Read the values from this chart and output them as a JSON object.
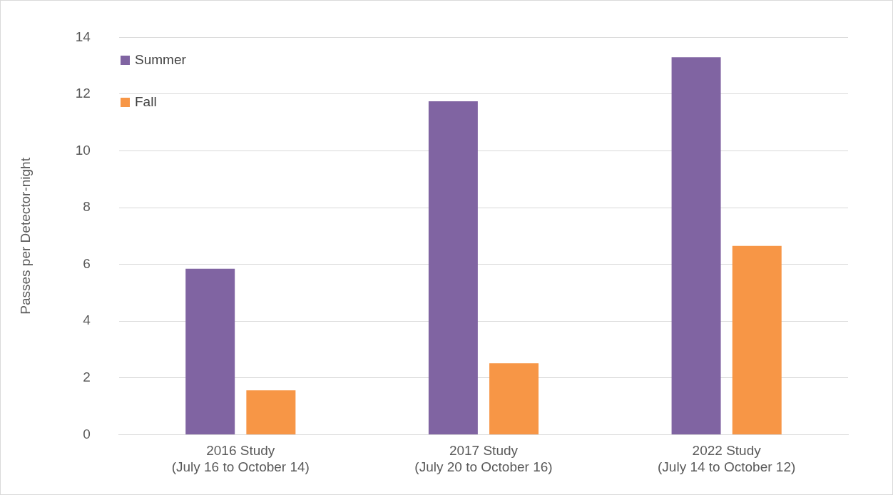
{
  "chart_data": {
    "type": "bar",
    "ylabel": "Passes per Detector-night",
    "categories": [
      "2016 Study\n(July 16 to October 14)",
      "2017 Study\n(July 20 to October 16)",
      "2022 Study\n(July 14 to October 12)"
    ],
    "series": [
      {
        "name": "Summer",
        "color": "#8064a2",
        "values": [
          5.85,
          11.75,
          13.3
        ]
      },
      {
        "name": "Fall",
        "color": "#f79646",
        "values": [
          1.56,
          2.52,
          6.65
        ]
      }
    ],
    "ylim": [
      0,
      14
    ],
    "yticks": [
      0,
      2,
      4,
      6,
      8,
      10,
      12,
      14
    ],
    "grid": "y",
    "legend": "top left"
  }
}
